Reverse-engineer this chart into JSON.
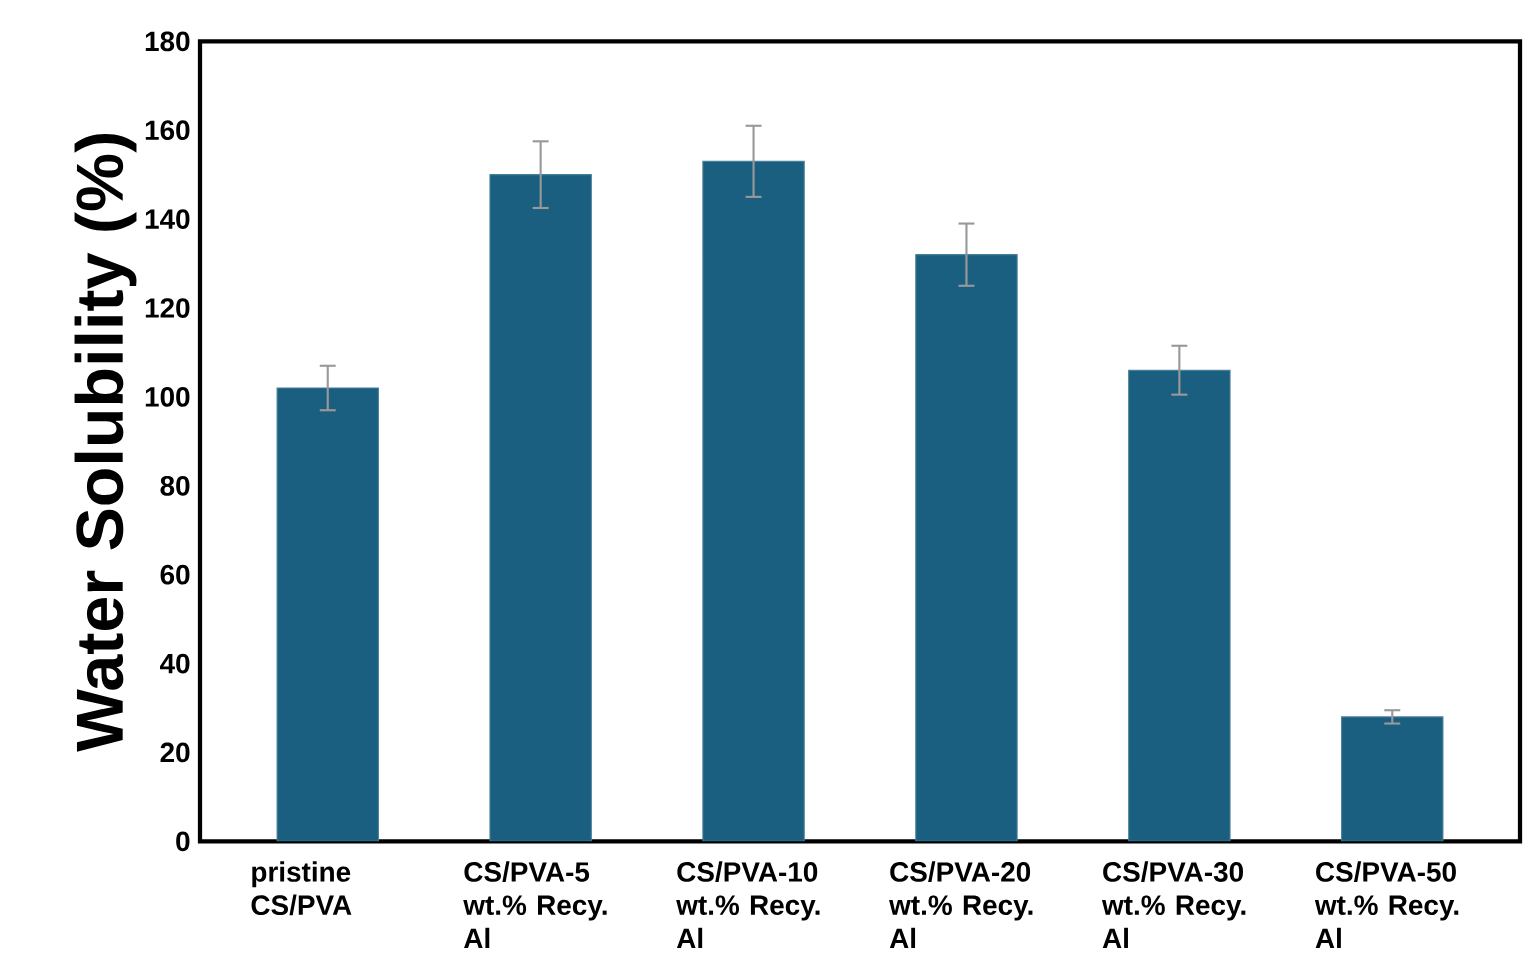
{
  "chart_data": {
    "type": "bar",
    "ylabel": "Water Solubility (%)",
    "categories": [
      "pristine CS/PVA",
      "CS/PVA-5 wt.% Recy. Al",
      "CS/PVA-10 wt.% Recy. Al",
      "CS/PVA-20 wt.% Recy. Al",
      "CS/PVA-30 wt.% Recy. Al",
      "CS/PVA-50 wt.% Recy. Al"
    ],
    "values": [
      102,
      150,
      153,
      132,
      106,
      28
    ],
    "errors": [
      5,
      7.5,
      8,
      7,
      5.5,
      1.5
    ],
    "color": "#1a5f80",
    "ylim": [
      0,
      180
    ],
    "yticks": [
      0,
      20,
      40,
      60,
      80,
      100,
      120,
      140,
      160,
      180
    ],
    "grid": false
  }
}
